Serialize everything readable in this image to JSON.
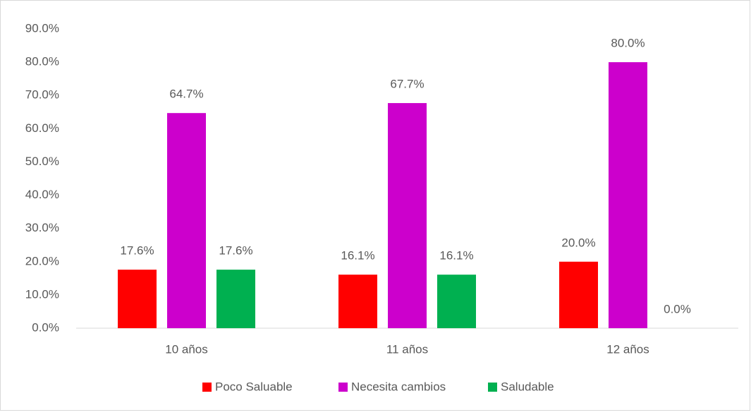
{
  "chart_data": {
    "type": "bar",
    "categories": [
      "10 años",
      "11 años",
      "12 años"
    ],
    "series": [
      {
        "name": "Poco Saluable",
        "color": "#ff0000",
        "values": [
          17.6,
          16.1,
          20.0
        ],
        "value_labels": [
          "17.6%",
          "16.1%",
          "20.0%"
        ]
      },
      {
        "name": "Necesita cambios",
        "color": "#cc00cc",
        "values": [
          64.7,
          67.7,
          80.0
        ],
        "value_labels": [
          "64.7%",
          "67.7%",
          "80.0%"
        ]
      },
      {
        "name": "Saludable",
        "color": "#00b050",
        "values": [
          17.6,
          16.1,
          0.0
        ],
        "value_labels": [
          "17.6%",
          "16.1%",
          "0.0%"
        ]
      }
    ],
    "ylim": [
      0,
      90
    ],
    "yticks": [
      {
        "value": 0,
        "label": "0.0%"
      },
      {
        "value": 10,
        "label": "10.0%"
      },
      {
        "value": 20,
        "label": "20.0%"
      },
      {
        "value": 30,
        "label": "30.0%"
      },
      {
        "value": 40,
        "label": "40.0%"
      },
      {
        "value": 50,
        "label": "50.0%"
      },
      {
        "value": 60,
        "label": "60.0%"
      },
      {
        "value": 70,
        "label": "70.0%"
      },
      {
        "value": 80,
        "label": "80.0%"
      },
      {
        "value": 90,
        "label": "90.0%"
      }
    ],
    "grid": false,
    "legend": "bottom"
  }
}
